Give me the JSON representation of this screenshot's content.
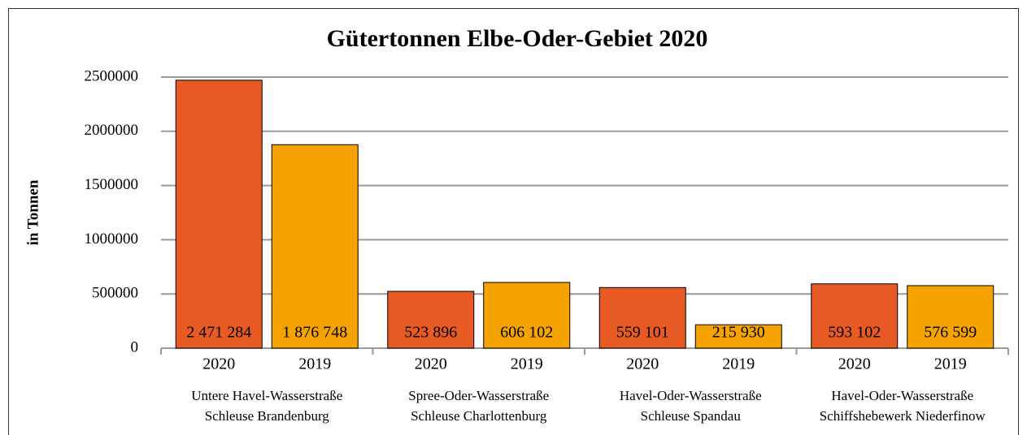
{
  "chart_data": {
    "type": "bar",
    "title": "Gütertonnen Elbe-Oder-Gebiet 2020",
    "y_label": "in Tonnen",
    "categories": [
      [
        "Untere Havel-Wasserstraße",
        "Schleuse Brandenburg"
      ],
      [
        "Spree-Oder-Wasserstraße",
        "Schleuse Charlottenburg"
      ],
      [
        "Havel-Oder-Wasserstraße",
        "Schleuse Spandau"
      ],
      [
        "Havel-Oder-Wasserstraße",
        "Schiffshebewerk Niederfinow"
      ]
    ],
    "series": [
      {
        "name": "2020",
        "color": "#e85a24",
        "values": [
          2471284,
          523896,
          559101,
          593102
        ],
        "value_labels": [
          "2 471 284",
          "523 896",
          "559 101",
          "593 102"
        ]
      },
      {
        "name": "2019",
        "color": "#f5a300",
        "values": [
          1876748,
          606102,
          215930,
          576599
        ],
        "value_labels": [
          "1 876 748",
          "606 102",
          "215 930",
          "576 599"
        ]
      }
    ],
    "ylim": [
      0,
      2500000
    ],
    "yticks": [
      0,
      500000,
      1000000,
      1500000,
      2000000,
      2500000
    ],
    "grid": true
  }
}
